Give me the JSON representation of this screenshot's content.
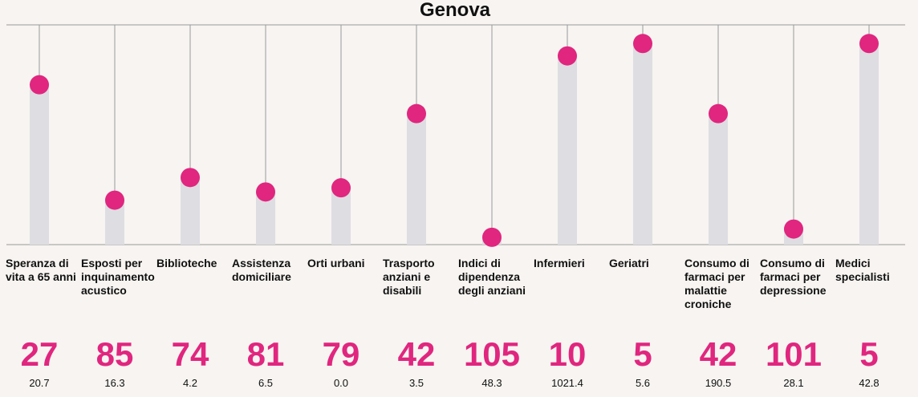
{
  "chart_data": {
    "type": "lollipop",
    "title": "Genova",
    "categories": [
      "Speranza di vita a 65 anni",
      "Esposti per inquinamento acustico",
      "Biblioteche",
      "Assistenza domiciliare",
      "Orti urbani",
      "Trasporto anziani e disabili",
      "Indici di dipendenza degli anziani",
      "Infermieri",
      "Geriatri",
      "Consumo di farmaci per malattie croniche",
      "Consumo di farmaci per depressione",
      "Medici specialisti"
    ],
    "ranks": [
      "27",
      "85",
      "74",
      "81",
      "79",
      "42",
      "105",
      "10",
      "5",
      "42",
      "101",
      "5"
    ],
    "values": [
      "20.7",
      "16.3",
      "4.2",
      "6.5",
      "0.0",
      "3.5",
      "48.3",
      "1021.4",
      "5.6",
      "190.5",
      "28.1",
      "42.8"
    ],
    "scores": [
      0.76,
      0.2,
      0.31,
      0.24,
      0.26,
      0.62,
      0.02,
      0.9,
      0.96,
      0.62,
      0.06,
      0.96
    ],
    "ylim": [
      0,
      1
    ],
    "grid": false,
    "colors": {
      "marker": "#e0267f",
      "bar": "#dedde2",
      "rank": "#e0267f",
      "line": "#9a9a9a"
    }
  }
}
